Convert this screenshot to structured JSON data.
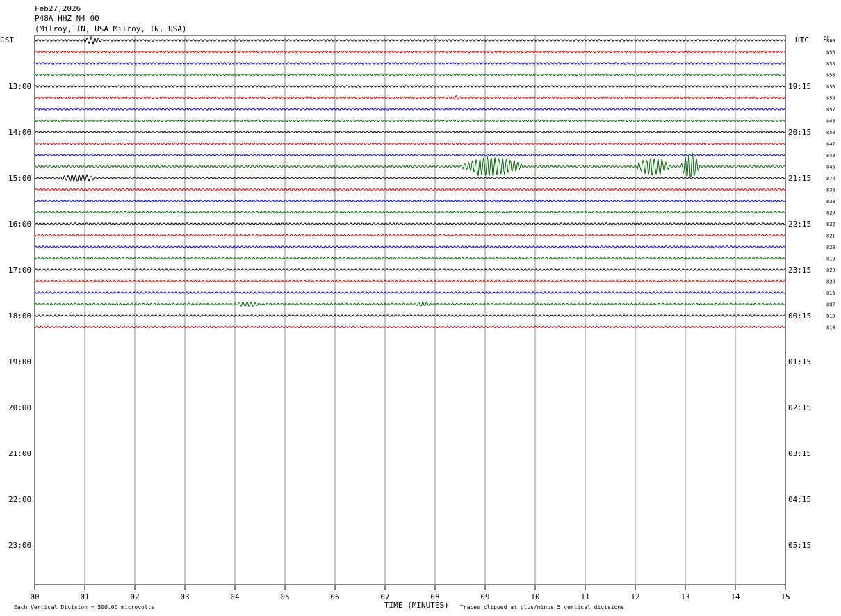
{
  "header": {
    "date": "Feb27,2026",
    "station": "P48A HHZ N4 00",
    "location": "(Milroy, IN, USA Milroy, IN, USA)"
  },
  "labels": {
    "left_tz": "CST",
    "right_tz": "UTC",
    "dc_label": "DC",
    "x_axis": "TIME (MINUTES)",
    "vertical_division": "Each Vertical Division =  500.00 microvolts",
    "clip_note": "Traces clipped at plus/minus 5 vertical divisions"
  },
  "chart_data": {
    "type": "line",
    "title": "",
    "xlabel": "TIME (MINUTES)",
    "xlim": [
      0,
      15
    ],
    "x_ticks": [
      "00",
      "01",
      "02",
      "03",
      "04",
      "05",
      "06",
      "07",
      "08",
      "09",
      "10",
      "11",
      "12",
      "13",
      "14",
      "15"
    ],
    "left_hour_labels": [
      "13:00",
      "14:00",
      "15:00",
      "16:00",
      "17:00",
      "18:00",
      "19:00",
      "20:00",
      "21:00",
      "22:00",
      "23:00"
    ],
    "right_hour_labels": [
      "19:15",
      "20:15",
      "21:15",
      "22:15",
      "23:15",
      "00:15",
      "01:15",
      "02:15",
      "03:15",
      "04:15",
      "05:15"
    ],
    "trace_colors": [
      "#000000",
      "#cc0000",
      "#0000cc",
      "#006600"
    ],
    "dc_offsets": [
      860,
      856,
      855,
      856,
      856,
      858,
      857,
      848,
      850,
      847,
      849,
      845,
      874,
      838,
      838,
      829,
      832,
      821,
      823,
      819,
      820,
      820,
      815,
      807,
      810,
      814
    ],
    "trace_count": 26,
    "events": [
      {
        "trace": 0,
        "start_min": 0.95,
        "end_min": 1.35,
        "amplitude": 2.0
      },
      {
        "trace": 5,
        "start_min": 8.35,
        "end_min": 8.5,
        "amplitude": 1.5
      },
      {
        "trace": 11,
        "start_min": 8.5,
        "end_min": 9.8,
        "amplitude": 7.5
      },
      {
        "trace": 11,
        "start_min": 12.0,
        "end_min": 12.7,
        "amplitude": 7.0
      },
      {
        "trace": 11,
        "start_min": 12.9,
        "end_min": 13.3,
        "amplitude": 10.0
      },
      {
        "trace": 12,
        "start_min": 0.45,
        "end_min": 1.25,
        "amplitude": 2.2
      },
      {
        "trace": 23,
        "start_min": 4.0,
        "end_min": 4.5,
        "amplitude": 1.2
      },
      {
        "trace": 23,
        "start_min": 7.6,
        "end_min": 7.9,
        "amplitude": 1.2
      }
    ]
  }
}
